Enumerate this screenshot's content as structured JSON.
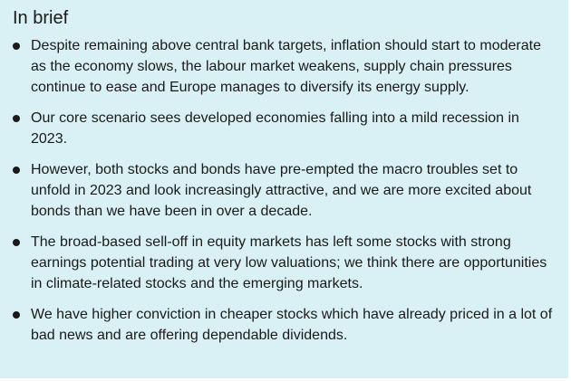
{
  "title": "In brief",
  "bullets": [
    "Despite remaining above central bank targets, inflation should start to moderate as the economy slows, the labour market weakens, supply chain pressures continue to ease and Europe manages to diversify its energy supply.",
    "Our core scenario sees developed economies falling into a mild recession in 2023.",
    "However, both stocks and bonds have pre-empted the macro troubles set to unfold in 2023 and look increasingly attractive, and we are more excited about bonds than we have been in over a decade.",
    "The broad-based sell-off in equity markets has left some stocks with strong earnings potential trading at very low valuations; we think there are opportunities in climate-related stocks and the emerging markets.",
    "We have higher conviction in cheaper stocks which have already priced in a lot of bad news and are offering dependable dividends."
  ],
  "colors": {
    "panel_background": "#d9f1f4",
    "text": "#1a1a1a"
  }
}
